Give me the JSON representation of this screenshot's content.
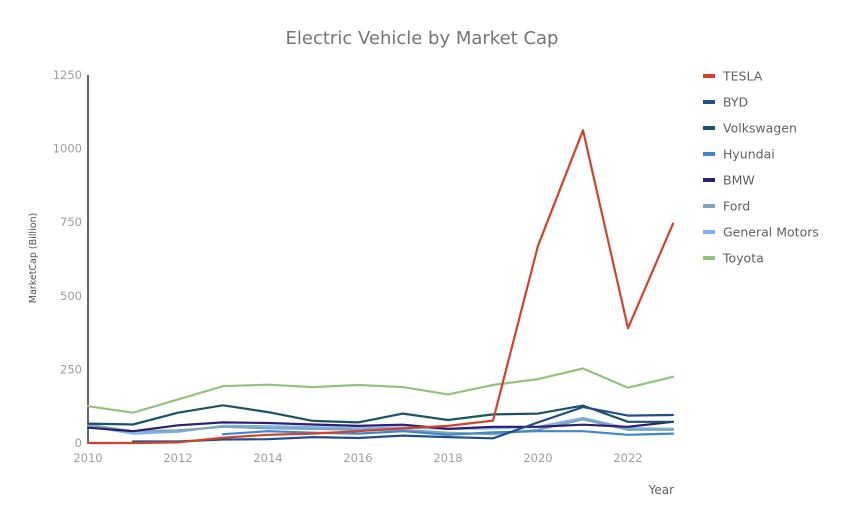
{
  "chart_data": {
    "type": "line",
    "title": "Electric Vehicle by Market Cap",
    "xlabel": "Year",
    "ylabel": "MarketCap (Billion)",
    "xlim": [
      2010,
      2023
    ],
    "ylim": [
      0,
      1250
    ],
    "x_ticks": [
      "2010",
      "2012",
      "2014",
      "2016",
      "2018",
      "2020",
      "2022"
    ],
    "y_ticks": [
      "0",
      "250",
      "500",
      "750",
      "1000",
      "1250"
    ],
    "grid": false,
    "legend_position": "right",
    "x": [
      2010,
      2011,
      2012,
      2013,
      2014,
      2015,
      2016,
      2017,
      2018,
      2019,
      2020,
      2021,
      2022,
      2023
    ],
    "series": [
      {
        "name": "TESLA",
        "color": "#d0432c",
        "values": [
          0,
          0,
          2,
          18,
          28,
          32,
          40,
          50,
          58,
          76,
          670,
          1062,
          390,
          745
        ]
      },
      {
        "name": " BYD",
        "color": "#234e8c",
        "values": [
          null,
          5,
          5,
          12,
          13,
          20,
          17,
          25,
          20,
          16,
          70,
          122,
          93,
          95
        ]
      },
      {
        "name": "Volkswagen",
        "color": "#1b5563",
        "values": [
          66,
          63,
          103,
          128,
          105,
          75,
          70,
          100,
          78,
          97,
          100,
          127,
          72,
          72
        ]
      },
      {
        "name": "Hyundai",
        "color": "#3f86cc",
        "values": [
          null,
          null,
          null,
          30,
          40,
          35,
          32,
          40,
          28,
          36,
          40,
          40,
          28,
          32
        ]
      },
      {
        "name": "BMW",
        "color": "#2e1f6e",
        "values": [
          52,
          40,
          60,
          70,
          68,
          63,
          58,
          62,
          48,
          55,
          55,
          62,
          55,
          72
        ]
      },
      {
        "name": "Ford",
        "color": "#7ea5b8",
        "values": [
          62,
          40,
          43,
          55,
          50,
          48,
          45,
          45,
          35,
          30,
          45,
          80,
          45,
          45
        ]
      },
      {
        "name": "General Motors",
        "color": "#7fb0f2",
        "values": [
          57,
          32,
          38,
          58,
          57,
          54,
          50,
          53,
          48,
          50,
          55,
          85,
          50,
          48
        ]
      },
      {
        "name": "Toyota",
        "color": "#93c47d",
        "values": [
          125,
          103,
          148,
          193,
          198,
          190,
          197,
          190,
          165,
          197,
          217,
          253,
          188,
          225
        ]
      }
    ]
  }
}
